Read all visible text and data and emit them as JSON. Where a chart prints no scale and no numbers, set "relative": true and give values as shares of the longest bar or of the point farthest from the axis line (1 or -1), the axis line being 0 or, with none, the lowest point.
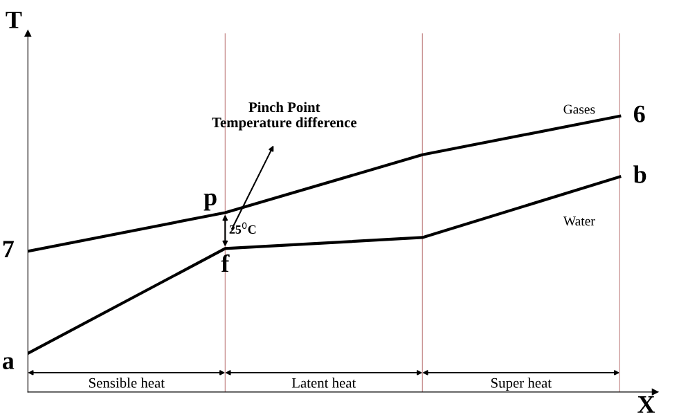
{
  "chart_data": {
    "type": "line",
    "relative": true,
    "xlabel": "X",
    "ylabel": "T",
    "grid": "x",
    "legend": false,
    "marker": "none",
    "line_style": "solid",
    "categories": [
      null,
      null,
      null,
      null
    ],
    "series": [
      {
        "name": "Gases",
        "color": "#000000",
        "values": [
          0.51,
          0.65,
          0.86,
          1.0
        ]
      },
      {
        "name": "Water",
        "color": "#000000",
        "values": [
          0.14,
          0.52,
          0.56,
          0.78
        ]
      }
    ],
    "annotations": [
      "7",
      "a",
      "6",
      "b",
      "p",
      "f",
      "25$^{0}$C",
      "Pinch Point\nTemperature difference",
      "Sensible heat",
      "Latent heat",
      "Super heat"
    ]
  }
}
